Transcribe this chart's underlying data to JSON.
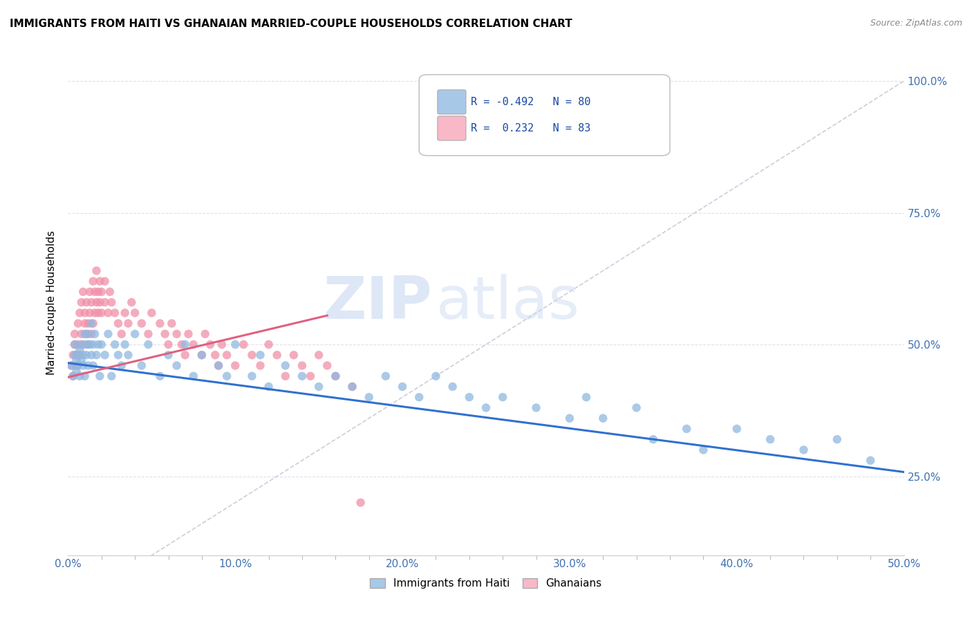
{
  "title": "IMMIGRANTS FROM HAITI VS GHANAIAN MARRIED-COUPLE HOUSEHOLDS CORRELATION CHART",
  "source": "Source: ZipAtlas.com",
  "xlabel_ticks": [
    "0.0%",
    "10.0%",
    "20.0%",
    "30.0%",
    "40.0%",
    "50.0%"
  ],
  "ylabel_ticks": [
    "25.0%",
    "50.0%",
    "75.0%",
    "100.0%"
  ],
  "xlim": [
    0.0,
    0.5
  ],
  "ylim": [
    0.1,
    1.06
  ],
  "watermark": "ZIPatlas",
  "legend_label1": "R = -0.492   N = 80",
  "legend_label2": "R =  0.232   N = 83",
  "legend_color1": "#a8c8e8",
  "legend_color2": "#f8b8c8",
  "trendline1_color": "#3070d0",
  "trendline2_color": "#e06080",
  "diag_color": "#c8c8d8",
  "scatter1_color": "#90b8e0",
  "scatter2_color": "#f090a8",
  "haiti_x": [
    0.002,
    0.003,
    0.004,
    0.004,
    0.005,
    0.005,
    0.006,
    0.006,
    0.007,
    0.007,
    0.008,
    0.008,
    0.009,
    0.009,
    0.01,
    0.01,
    0.011,
    0.011,
    0.012,
    0.012,
    0.013,
    0.014,
    0.014,
    0.015,
    0.015,
    0.016,
    0.017,
    0.018,
    0.019,
    0.02,
    0.022,
    0.024,
    0.026,
    0.028,
    0.03,
    0.032,
    0.034,
    0.036,
    0.04,
    0.044,
    0.048,
    0.055,
    0.06,
    0.065,
    0.07,
    0.075,
    0.08,
    0.09,
    0.095,
    0.1,
    0.11,
    0.115,
    0.12,
    0.13,
    0.14,
    0.15,
    0.16,
    0.17,
    0.18,
    0.19,
    0.2,
    0.21,
    0.22,
    0.23,
    0.24,
    0.25,
    0.26,
    0.28,
    0.3,
    0.31,
    0.32,
    0.34,
    0.35,
    0.37,
    0.38,
    0.4,
    0.42,
    0.44,
    0.46,
    0.48
  ],
  "haiti_y": [
    0.46,
    0.44,
    0.48,
    0.5,
    0.45,
    0.47,
    0.46,
    0.48,
    0.44,
    0.49,
    0.47,
    0.5,
    0.46,
    0.48,
    0.52,
    0.44,
    0.5,
    0.48,
    0.46,
    0.52,
    0.5,
    0.48,
    0.54,
    0.46,
    0.5,
    0.52,
    0.48,
    0.5,
    0.44,
    0.5,
    0.48,
    0.52,
    0.44,
    0.5,
    0.48,
    0.46,
    0.5,
    0.48,
    0.52,
    0.46,
    0.5,
    0.44,
    0.48,
    0.46,
    0.5,
    0.44,
    0.48,
    0.46,
    0.44,
    0.5,
    0.44,
    0.48,
    0.42,
    0.46,
    0.44,
    0.42,
    0.44,
    0.42,
    0.4,
    0.44,
    0.42,
    0.4,
    0.44,
    0.42,
    0.4,
    0.38,
    0.4,
    0.38,
    0.36,
    0.4,
    0.36,
    0.38,
    0.32,
    0.34,
    0.3,
    0.34,
    0.32,
    0.3,
    0.32,
    0.28
  ],
  "ghana_x": [
    0.002,
    0.003,
    0.003,
    0.004,
    0.004,
    0.005,
    0.005,
    0.006,
    0.006,
    0.007,
    0.007,
    0.008,
    0.008,
    0.009,
    0.009,
    0.01,
    0.01,
    0.011,
    0.011,
    0.012,
    0.012,
    0.013,
    0.013,
    0.014,
    0.014,
    0.015,
    0.015,
    0.016,
    0.016,
    0.017,
    0.017,
    0.018,
    0.018,
    0.019,
    0.019,
    0.02,
    0.02,
    0.022,
    0.022,
    0.024,
    0.025,
    0.026,
    0.028,
    0.03,
    0.032,
    0.034,
    0.036,
    0.038,
    0.04,
    0.044,
    0.048,
    0.05,
    0.055,
    0.058,
    0.06,
    0.062,
    0.065,
    0.068,
    0.07,
    0.072,
    0.075,
    0.08,
    0.082,
    0.085,
    0.088,
    0.09,
    0.092,
    0.095,
    0.1,
    0.105,
    0.11,
    0.115,
    0.12,
    0.125,
    0.13,
    0.135,
    0.14,
    0.145,
    0.15,
    0.155,
    0.16,
    0.17,
    0.175
  ],
  "ghana_y": [
    0.46,
    0.48,
    0.44,
    0.5,
    0.52,
    0.46,
    0.48,
    0.5,
    0.54,
    0.48,
    0.56,
    0.52,
    0.58,
    0.5,
    0.6,
    0.54,
    0.56,
    0.52,
    0.58,
    0.5,
    0.54,
    0.56,
    0.6,
    0.52,
    0.58,
    0.54,
    0.62,
    0.56,
    0.6,
    0.58,
    0.64,
    0.56,
    0.6,
    0.62,
    0.58,
    0.56,
    0.6,
    0.58,
    0.62,
    0.56,
    0.6,
    0.58,
    0.56,
    0.54,
    0.52,
    0.56,
    0.54,
    0.58,
    0.56,
    0.54,
    0.52,
    0.56,
    0.54,
    0.52,
    0.5,
    0.54,
    0.52,
    0.5,
    0.48,
    0.52,
    0.5,
    0.48,
    0.52,
    0.5,
    0.48,
    0.46,
    0.5,
    0.48,
    0.46,
    0.5,
    0.48,
    0.46,
    0.5,
    0.48,
    0.44,
    0.48,
    0.46,
    0.44,
    0.48,
    0.46,
    0.44,
    0.42,
    0.2
  ],
  "trendline1_x": [
    0.0,
    0.5
  ],
  "trendline1_y": [
    0.465,
    0.258
  ],
  "trendline2_x": [
    0.0,
    0.155
  ],
  "trendline2_y": [
    0.438,
    0.555
  ],
  "background_color": "#ffffff",
  "grid_color": "#e0e0ea",
  "title_fontsize": 11,
  "tick_color": "#4070b0",
  "ylabel": "Married-couple Households",
  "bottom_legend_label1": "Immigrants from Haiti",
  "bottom_legend_label2": "Ghanaians"
}
